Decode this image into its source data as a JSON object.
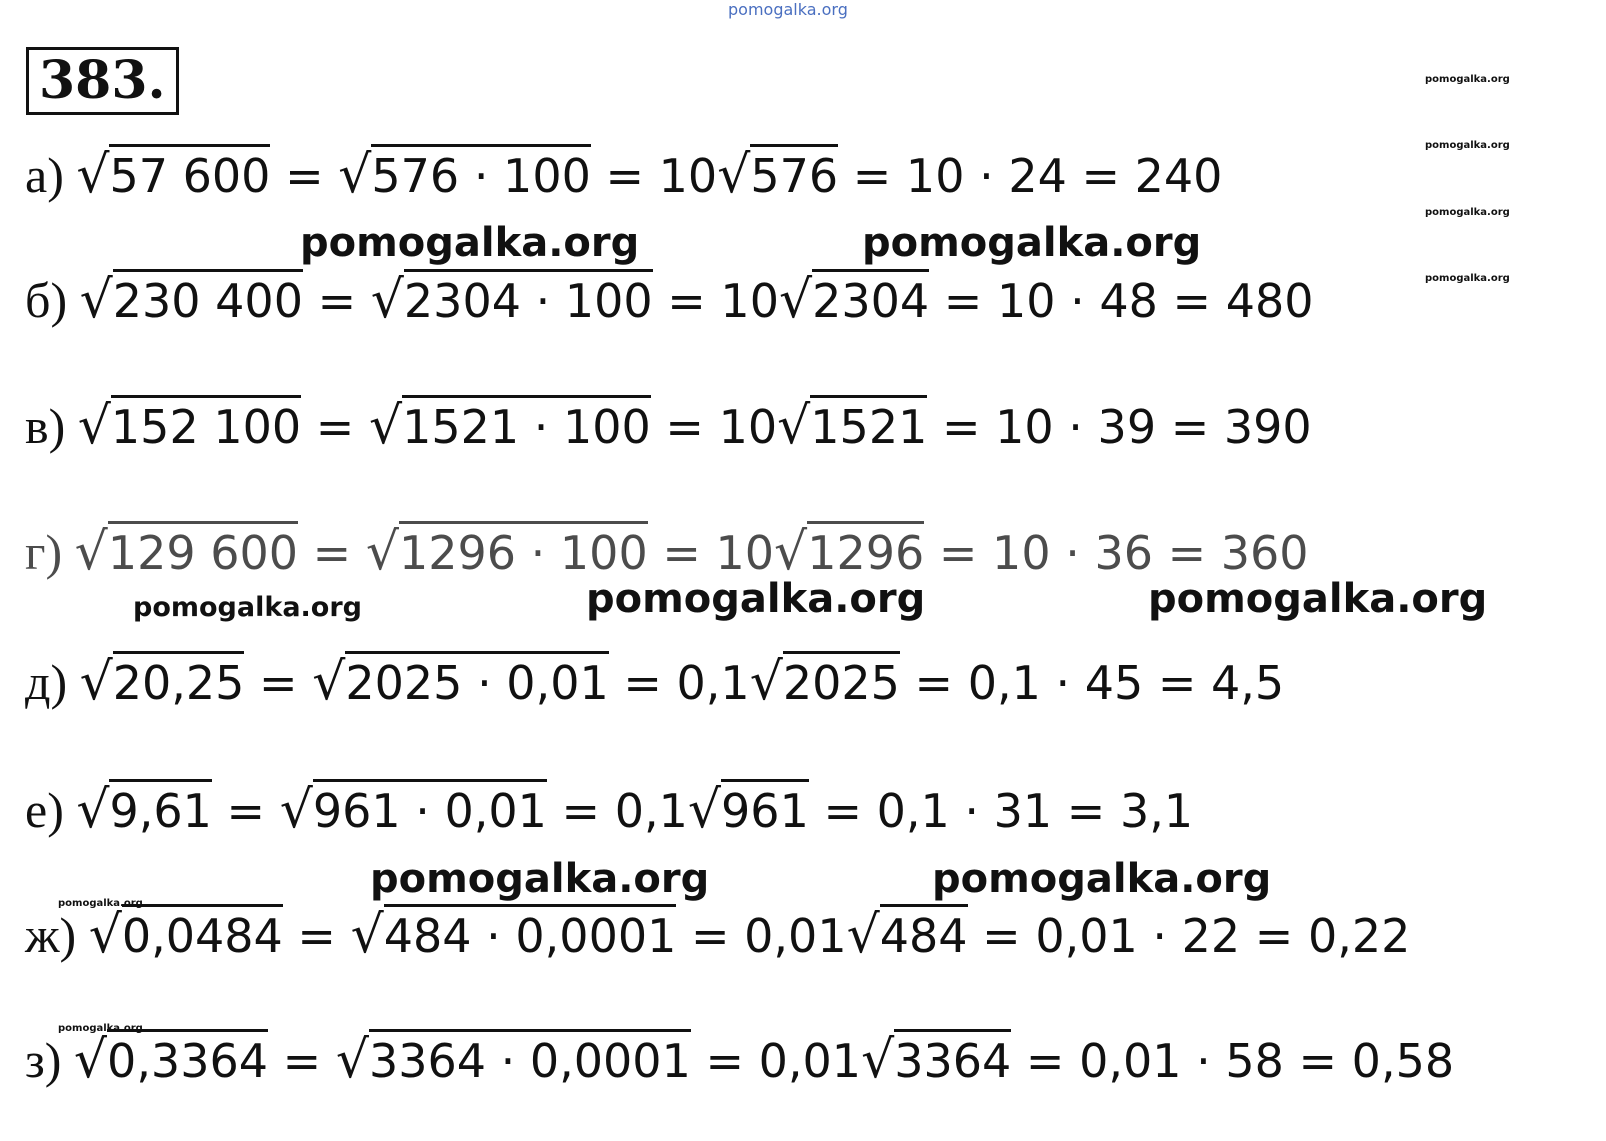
{
  "problem_number": "383.",
  "watermark": "pomogalka.org",
  "items": [
    {
      "label": "а) ",
      "tokens": [
        {
          "sq": "57 600"
        },
        {
          "t": " = "
        },
        {
          "sq": "576 · 100"
        },
        {
          "t": " = 10"
        },
        {
          "sq": "576"
        },
        {
          "t": " = 10 · 24 = 240"
        }
      ]
    },
    {
      "label": "б) ",
      "tokens": [
        {
          "sq": "230 400"
        },
        {
          "t": " = "
        },
        {
          "sq": "2304 · 100"
        },
        {
          "t": " = 10"
        },
        {
          "sq": "2304"
        },
        {
          "t": " = 10 · 48 = 480"
        }
      ]
    },
    {
      "label": "в) ",
      "tokens": [
        {
          "sq": "152 100"
        },
        {
          "t": " = "
        },
        {
          "sq": "1521 · 100"
        },
        {
          "t": " = 10"
        },
        {
          "sq": "1521"
        },
        {
          "t": " = 10 · 39 = 390"
        }
      ]
    },
    {
      "label": "г) ",
      "tokens": [
        {
          "sq": "129 600"
        },
        {
          "t": " = "
        },
        {
          "sq": "1296 · 100"
        },
        {
          "t": " = 10"
        },
        {
          "sq": "1296"
        },
        {
          "t": " = 10 · 36 = 360"
        }
      ]
    },
    {
      "label": "д) ",
      "tokens": [
        {
          "sq": "20,25"
        },
        {
          "t": " = "
        },
        {
          "sq": "2025 · 0,01"
        },
        {
          "t": " = 0,1"
        },
        {
          "sq": "2025"
        },
        {
          "t": " = 0,1 · 45 = 4,5"
        }
      ]
    },
    {
      "label": "е) ",
      "tokens": [
        {
          "sq": "9,61"
        },
        {
          "t": " = "
        },
        {
          "sq": "961 · 0,01"
        },
        {
          "t": " = 0,1"
        },
        {
          "sq": "961"
        },
        {
          "t": " = 0,1 · 31 = 3,1"
        }
      ]
    },
    {
      "label": "ж) ",
      "tokens": [
        {
          "sq": "0,0484"
        },
        {
          "t": " = "
        },
        {
          "sq": "484 · 0,0001"
        },
        {
          "t": " = 0,01"
        },
        {
          "sq": "484"
        },
        {
          "t": " = 0,01 · 22 = 0,22"
        }
      ]
    },
    {
      "label": "з) ",
      "tokens": [
        {
          "sq": "0,3364"
        },
        {
          "t": " = "
        },
        {
          "sq": "3364 · 0,0001"
        },
        {
          "t": " = 0,01"
        },
        {
          "sq": "3364"
        },
        {
          "t": " = 0,01 · 58 = 0,58"
        }
      ]
    }
  ]
}
